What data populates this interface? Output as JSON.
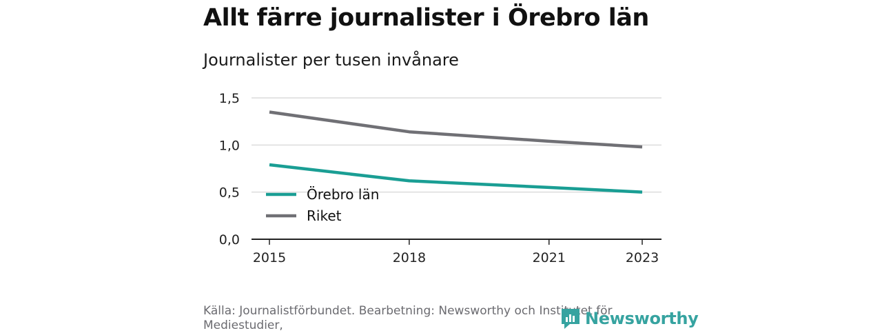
{
  "header": {
    "title": "Allt färre journalister i Örebro län",
    "subtitle": "Journalister per tusen invånare"
  },
  "footer": {
    "source": "Källa: Journalistförbundet. Bearbetning: Newsworthy och Institutet för Mediestudier,",
    "brand": "Newsworthy",
    "brand_icon": "newsworthy-logo-icon"
  },
  "colors": {
    "orebro": "#1a9e94",
    "riket": "#707075",
    "grid": "#dcdcdc",
    "axis": "#222222",
    "brand": "#36a3a0"
  },
  "chart_data": {
    "type": "line",
    "x": [
      2015,
      2018,
      2021,
      2023
    ],
    "x_ticks": [
      "2015",
      "2018",
      "2021",
      "2023"
    ],
    "y_ticks": [
      "0,0",
      "0,5",
      "1,0",
      "1,5"
    ],
    "ylim": [
      0,
      1.5
    ],
    "grid": true,
    "legend_position": "lower-left",
    "series": [
      {
        "name": "Örebro län",
        "values": [
          0.79,
          0.62,
          0.55,
          0.5
        ]
      },
      {
        "name": "Riket",
        "values": [
          1.35,
          1.14,
          1.04,
          0.98
        ]
      }
    ]
  }
}
